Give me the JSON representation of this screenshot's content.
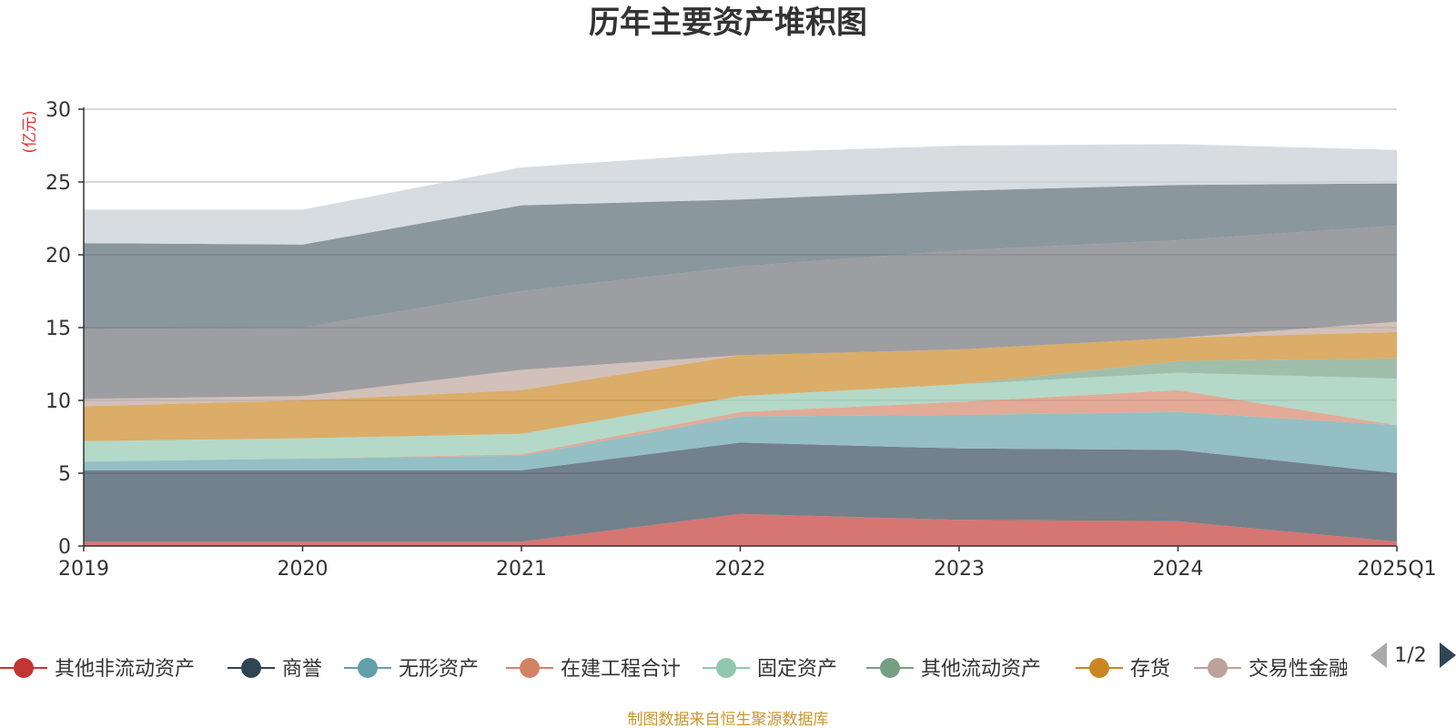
{
  "chart_data": {
    "type": "area",
    "stacked": true,
    "title": "历年主要资产堆积图",
    "unit_label": "(亿元)",
    "x": [
      "2019",
      "2020",
      "2021",
      "2022",
      "2023",
      "2024",
      "2025Q1"
    ],
    "ylim": [
      0,
      30
    ],
    "yticks": [
      0,
      5,
      10,
      15,
      20,
      25,
      30
    ],
    "grid": true,
    "series": [
      {
        "name": "其他非流动资产",
        "color": "#c23531",
        "values": [
          0.3,
          0.3,
          0.3,
          2.2,
          1.8,
          1.7,
          0.3
        ]
      },
      {
        "name": "商誉",
        "color": "#2f4554",
        "values": [
          4.9,
          4.9,
          4.9,
          4.9,
          4.9,
          4.9,
          4.7
        ]
      },
      {
        "name": "无形资产",
        "color": "#61a0a8",
        "values": [
          0.6,
          0.8,
          1.0,
          1.8,
          2.3,
          2.6,
          3.3
        ]
      },
      {
        "name": "在建工程合计",
        "color": "#d48265",
        "values": [
          0.0,
          0.0,
          0.1,
          0.3,
          0.9,
          1.5,
          0.0
        ]
      },
      {
        "name": "固定资产",
        "color": "#91c7ae",
        "values": [
          1.4,
          1.4,
          1.4,
          1.1,
          1.2,
          1.2,
          3.2
        ]
      },
      {
        "name": "其他流动资产",
        "color": "#749f83",
        "values": [
          0.0,
          0.0,
          0.0,
          0.0,
          0.0,
          0.8,
          1.4
        ]
      },
      {
        "name": "存货",
        "color": "#ca8622",
        "values": [
          2.4,
          2.6,
          3.0,
          2.8,
          2.4,
          1.6,
          1.8
        ]
      },
      {
        "name": "交易性金融资产",
        "color": "#bda29a",
        "values": [
          0.5,
          0.3,
          1.4,
          0.0,
          0.0,
          0.0,
          0.7
        ]
      },
      {
        "name": "",
        "color": "#6e7074",
        "values": [
          4.8,
          4.7,
          5.4,
          6.1,
          6.8,
          6.7,
          6.6
        ]
      },
      {
        "name": "",
        "color": "#546570",
        "values": [
          5.9,
          5.7,
          5.9,
          4.6,
          4.1,
          3.8,
          2.9
        ]
      },
      {
        "name": "",
        "color": "#c4ccd3",
        "values": [
          2.3,
          2.4,
          2.6,
          3.2,
          3.1,
          2.8,
          2.3
        ]
      }
    ],
    "legend_visible": [
      "其他非流动资产",
      "商誉",
      "无形资产",
      "在建工程合计",
      "固定资产",
      "其他流动资产",
      "存货",
      "交易性金融资产"
    ],
    "legend_position": "bottom"
  },
  "legend_page": "1/2",
  "source_note": "制图数据来自恒生聚源数据库"
}
